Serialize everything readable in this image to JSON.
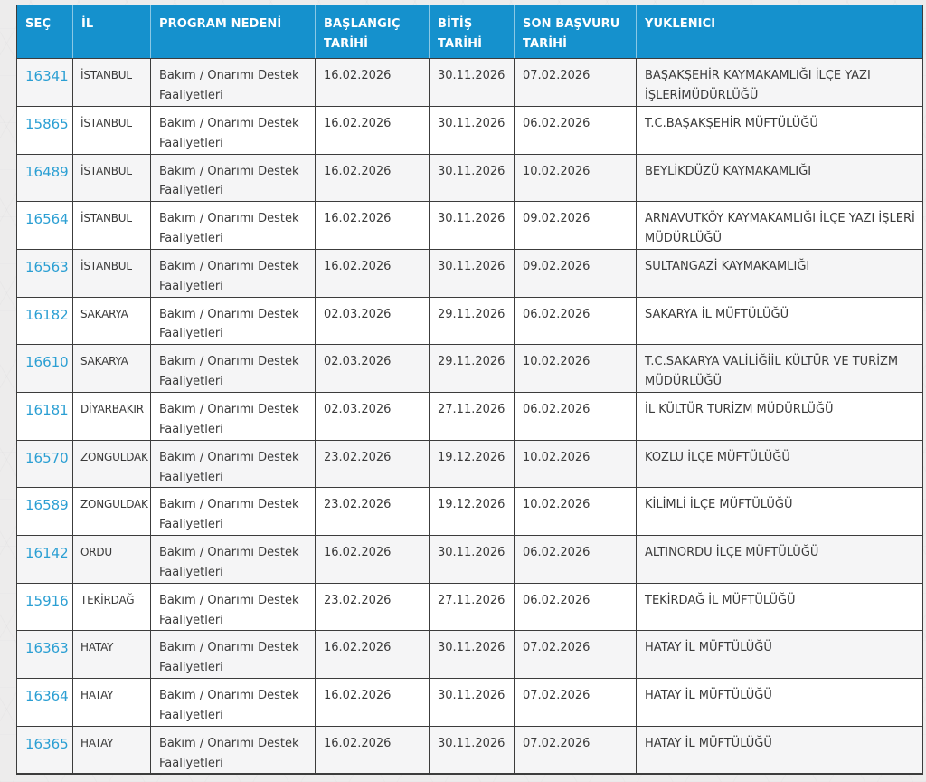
{
  "table": {
    "columns": [
      {
        "key": "sec",
        "label": "SEÇ"
      },
      {
        "key": "il",
        "label": "İL"
      },
      {
        "key": "program",
        "label": "PROGRAM NEDENİ"
      },
      {
        "key": "baslangic",
        "label": "BAŞLANGIÇ TARİHİ"
      },
      {
        "key": "bitis",
        "label": "BİTİŞ TARİHİ"
      },
      {
        "key": "son_basvuru",
        "label": "SON BAŞVURU TARİHİ"
      },
      {
        "key": "yuklenici",
        "label": "YUKLENICI"
      }
    ],
    "rows": [
      {
        "sec": "16341",
        "il": "İSTANBUL",
        "program": "Bakım / Onarımı Destek Faaliyetleri",
        "baslangic": "16.02.2026",
        "bitis": "30.11.2026",
        "son_basvuru": "07.02.2026",
        "yuklenici": "BAŞAKŞEHİR KAYMAKAMLIĞI İLÇE YAZI İŞLERİMÜDÜRLÜĞÜ"
      },
      {
        "sec": "15865",
        "il": "İSTANBUL",
        "program": "Bakım / Onarımı Destek Faaliyetleri",
        "baslangic": "16.02.2026",
        "bitis": "30.11.2026",
        "son_basvuru": "06.02.2026",
        "yuklenici": "T.C.BAŞAKŞEHİR MÜFTÜLÜĞÜ"
      },
      {
        "sec": "16489",
        "il": "İSTANBUL",
        "program": "Bakım / Onarımı Destek Faaliyetleri",
        "baslangic": "16.02.2026",
        "bitis": "30.11.2026",
        "son_basvuru": "10.02.2026",
        "yuklenici": "BEYLİKDÜZÜ KAYMAKAMLIĞI"
      },
      {
        "sec": "16564",
        "il": "İSTANBUL",
        "program": "Bakım / Onarımı Destek Faaliyetleri",
        "baslangic": "16.02.2026",
        "bitis": "30.11.2026",
        "son_basvuru": "09.02.2026",
        "yuklenici": "ARNAVUTKÖY KAYMAKAMLIĞI İLÇE YAZI İŞLERİ MÜDÜRLÜĞÜ"
      },
      {
        "sec": "16563",
        "il": "İSTANBUL",
        "program": "Bakım / Onarımı Destek Faaliyetleri",
        "baslangic": "16.02.2026",
        "bitis": "30.11.2026",
        "son_basvuru": "09.02.2026",
        "yuklenici": "SULTANGAZİ KAYMAKAMLIĞI"
      },
      {
        "sec": "16182",
        "il": "SAKARYA",
        "program": "Bakım / Onarımı Destek Faaliyetleri",
        "baslangic": "02.03.2026",
        "bitis": "29.11.2026",
        "son_basvuru": "06.02.2026",
        "yuklenici": "SAKARYA İL MÜFTÜLÜĞÜ"
      },
      {
        "sec": "16610",
        "il": "SAKARYA",
        "program": "Bakım / Onarımı Destek Faaliyetleri",
        "baslangic": "02.03.2026",
        "bitis": "29.11.2026",
        "son_basvuru": "10.02.2026",
        "yuklenici": "T.C.SAKARYA VALİLİĞİİL KÜLTÜR VE TURİZM MÜDÜRLÜĞÜ"
      },
      {
        "sec": "16181",
        "il": "DİYARBAKIR",
        "program": "Bakım / Onarımı Destek Faaliyetleri",
        "baslangic": "02.03.2026",
        "bitis": "27.11.2026",
        "son_basvuru": "06.02.2026",
        "yuklenici": "İL KÜLTÜR TURİZM MÜDÜRLÜĞÜ"
      },
      {
        "sec": "16570",
        "il": "ZONGULDAK",
        "program": "Bakım / Onarımı Destek Faaliyetleri",
        "baslangic": "23.02.2026",
        "bitis": "19.12.2026",
        "son_basvuru": "10.02.2026",
        "yuklenici": "KOZLU İLÇE MÜFTÜLÜĞÜ"
      },
      {
        "sec": "16589",
        "il": "ZONGULDAK",
        "program": "Bakım / Onarımı Destek Faaliyetleri",
        "baslangic": "23.02.2026",
        "bitis": "19.12.2026",
        "son_basvuru": "10.02.2026",
        "yuklenici": "KİLİMLİ İLÇE MÜFTÜLÜĞÜ"
      },
      {
        "sec": "16142",
        "il": "ORDU",
        "program": "Bakım / Onarımı Destek Faaliyetleri",
        "baslangic": "16.02.2026",
        "bitis": "30.11.2026",
        "son_basvuru": "06.02.2026",
        "yuklenici": "ALTINORDU İLÇE MÜFTÜLÜĞÜ"
      },
      {
        "sec": "15916",
        "il": "TEKİRDAĞ",
        "program": "Bakım / Onarımı Destek Faaliyetleri",
        "baslangic": "23.02.2026",
        "bitis": "27.11.2026",
        "son_basvuru": "06.02.2026",
        "yuklenici": "TEKİRDAĞ İL MÜFTÜLÜĞÜ"
      },
      {
        "sec": "16363",
        "il": "HATAY",
        "program": "Bakım / Onarımı Destek Faaliyetleri",
        "baslangic": "16.02.2026",
        "bitis": "30.11.2026",
        "son_basvuru": "07.02.2026",
        "yuklenici": "HATAY İL MÜFTÜLÜĞÜ"
      },
      {
        "sec": "16364",
        "il": "HATAY",
        "program": "Bakım / Onarımı Destek Faaliyetleri",
        "baslangic": "16.02.2026",
        "bitis": "30.11.2026",
        "son_basvuru": "07.02.2026",
        "yuklenici": "HATAY İL MÜFTÜLÜĞÜ"
      },
      {
        "sec": "16365",
        "il": "HATAY",
        "program": "Bakım / Onarımı Destek Faaliyetleri",
        "baslangic": "16.02.2026",
        "bitis": "30.11.2026",
        "son_basvuru": "07.02.2026",
        "yuklenici": "HATAY İL MÜFTÜLÜĞÜ"
      }
    ]
  },
  "colors": {
    "header_bg": "#1591cd",
    "link": "#2b9fd3",
    "border": "#3c3c3c",
    "row_alt": "#f5f5f6",
    "page_bg": "#edecec"
  }
}
